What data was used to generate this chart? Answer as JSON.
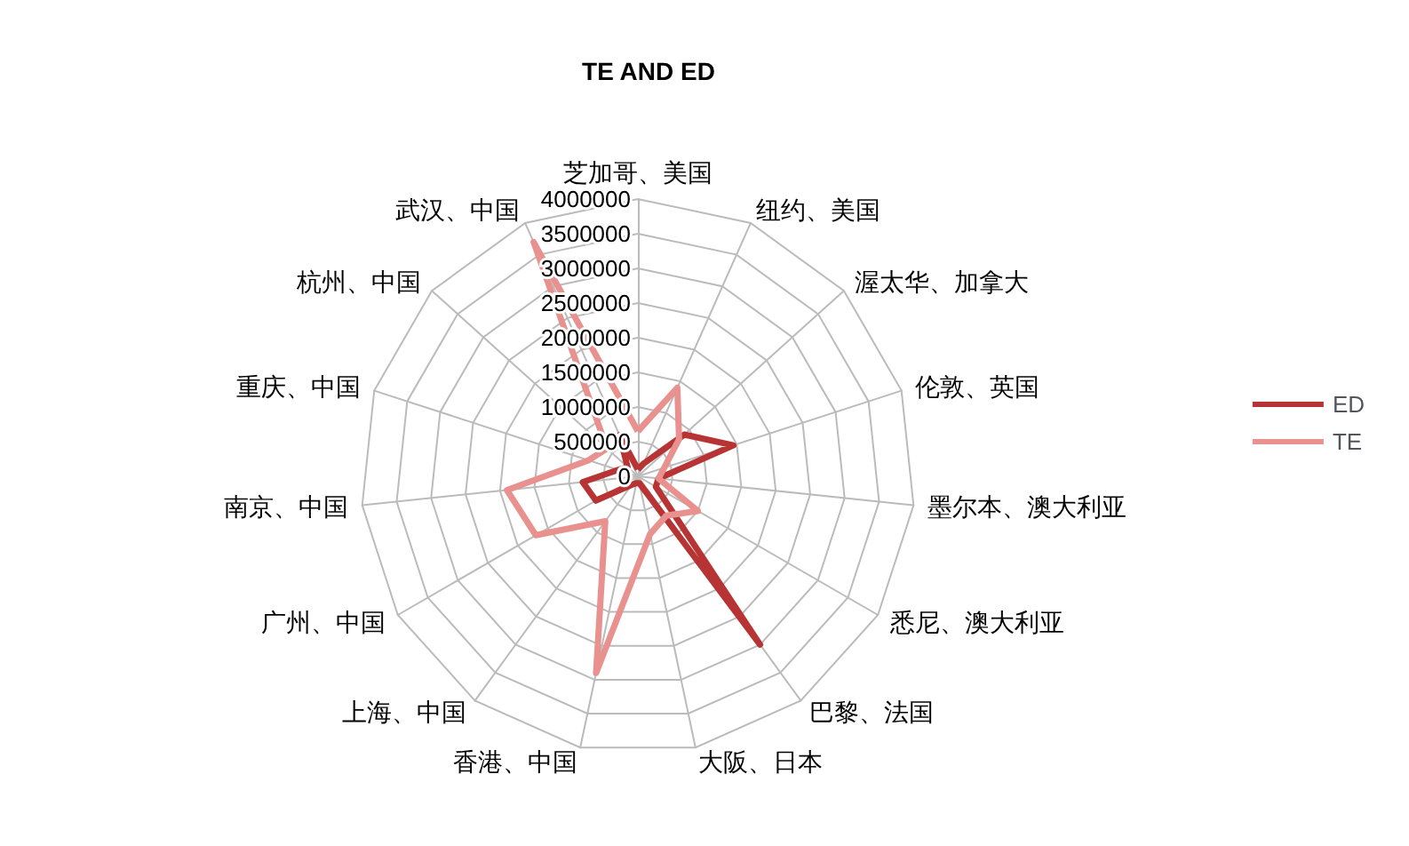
{
  "chart_data": {
    "type": "radar",
    "title": "TE AND ED",
    "categories": [
      "芝加哥、美国",
      "纽约、美国",
      "渥太华、加拿大",
      "伦敦、英国",
      "墨尔本、澳大利亚",
      "悉尼、澳大利亚",
      "巴黎、法国",
      "大阪、日本",
      "香港、中国",
      "上海、中国",
      "广州、中国",
      "南京、中国",
      "重庆、中国",
      "杭州、中国",
      "武汉、中国"
    ],
    "series": [
      {
        "name": "ED",
        "color": "#b83333",
        "values": [
          100000,
          200000,
          900000,
          1450000,
          300000,
          300000,
          3000000,
          100000,
          100000,
          150000,
          700000,
          800000,
          300000,
          200000,
          650000
        ]
      },
      {
        "name": "TE",
        "color": "#e8918e",
        "values": [
          650000,
          1400000,
          800000,
          400000,
          300000,
          1000000,
          700000,
          850000,
          2900000,
          800000,
          1700000,
          1900000,
          750000,
          600000,
          3700000
        ]
      }
    ],
    "ylim": [
      0,
      4000000
    ],
    "yticks": [
      0,
      500000,
      1000000,
      1500000,
      2000000,
      2500000,
      3000000,
      3500000,
      4000000
    ],
    "grid": true,
    "legend": "right",
    "marker": "none",
    "line_style": "solid"
  }
}
